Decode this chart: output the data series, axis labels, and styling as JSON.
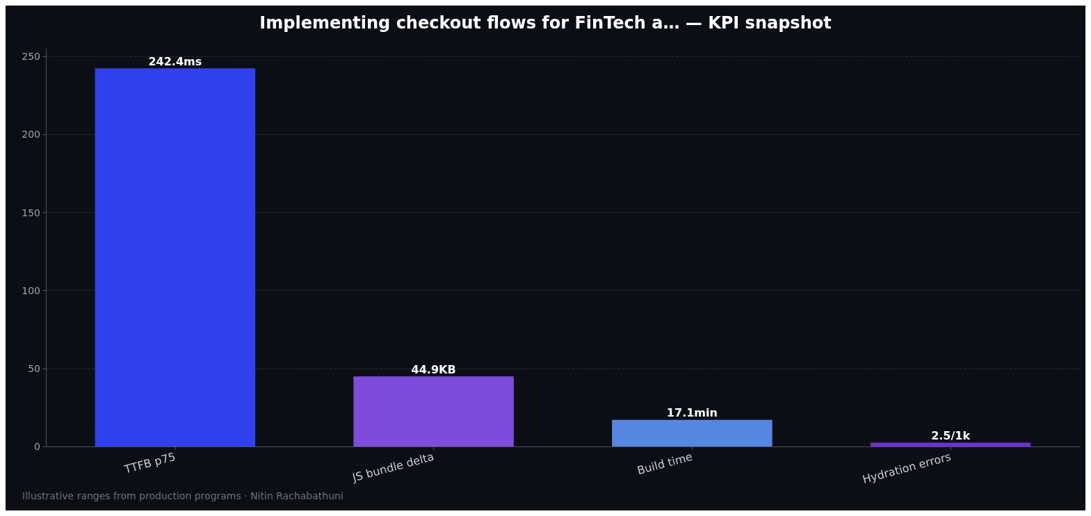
{
  "chart_data": {
    "type": "bar",
    "title": "Implementing checkout flows for FinTech a… — KPI snapshot",
    "categories": [
      "TTFB p75",
      "JS bundle delta",
      "Build time",
      "Hydration errors"
    ],
    "values": [
      242.4,
      44.9,
      17.1,
      2.5
    ],
    "colors": [
      "#2f41ec",
      "#7e4cdc",
      "#5786e0",
      "#6f2fd8"
    ],
    "value_labels": [
      "242.4ms",
      "44.9KB",
      "17.1min",
      "2.5/1k"
    ],
    "ylim": [
      0,
      255
    ],
    "yticks": [
      0,
      50,
      100,
      150,
      200,
      250
    ],
    "grid": "y",
    "annotations": [
      "Illustrative ranges from production programs · Nitin Rachabathuni"
    ]
  }
}
